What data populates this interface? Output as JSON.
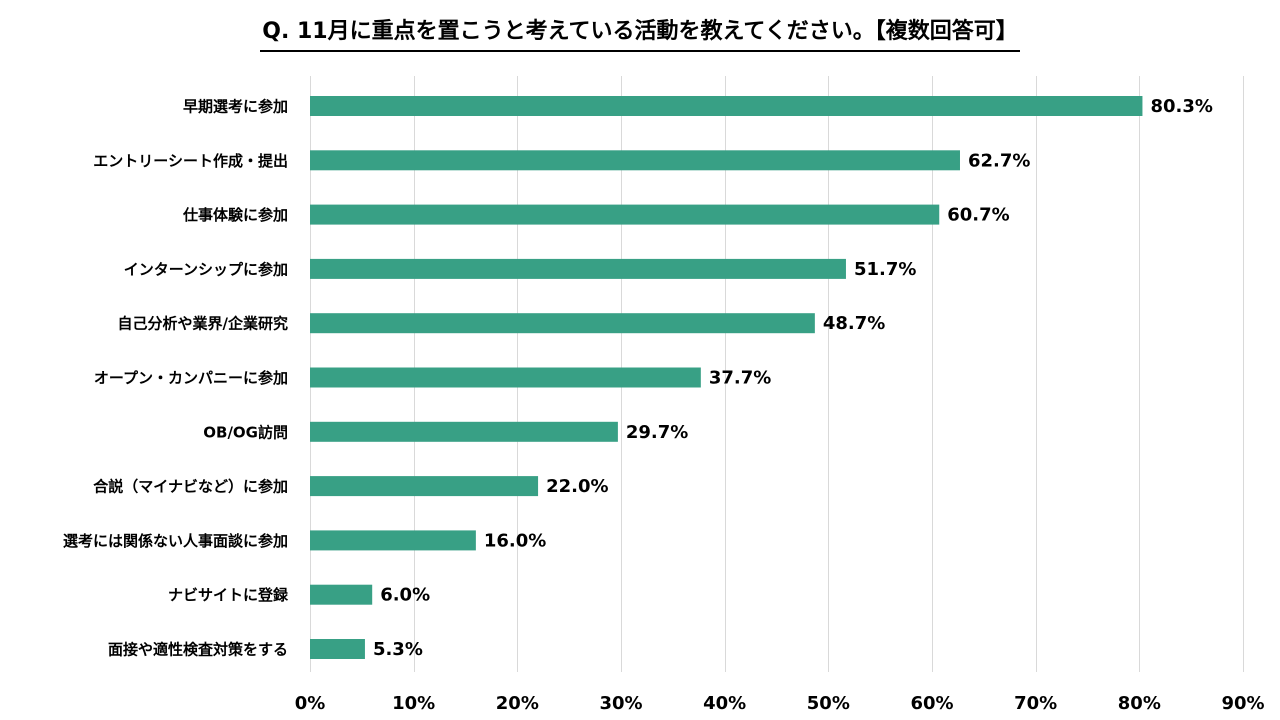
{
  "chart_data": {
    "type": "bar",
    "orientation": "horizontal",
    "title": "Q. 11月に重点を置こうと考えている活動を教えてください。【複数回答可】",
    "categories": [
      "早期選考に参加",
      "エントリーシート作成・提出",
      "仕事体験に参加",
      "インターンシップに参加",
      "自己分析や業界/企業研究",
      "オープン・カンパニーに参加",
      "OB/OG訪問",
      "合説（マイナビなど）に参加",
      "選考には関係ない人事面談に参加",
      "ナビサイトに登録",
      "面接や適性検査対策をする"
    ],
    "values": [
      80.3,
      62.7,
      60.7,
      51.7,
      48.7,
      37.7,
      29.7,
      22.0,
      16.0,
      6.0,
      5.3
    ],
    "value_labels": [
      "80.3%",
      "62.7%",
      "60.7%",
      "51.7%",
      "48.7%",
      "37.7%",
      "29.7%",
      "22.0%",
      "16.0%",
      "6.0%",
      "5.3%"
    ],
    "xlim": [
      0,
      90
    ],
    "xticks": [
      0,
      10,
      20,
      30,
      40,
      50,
      60,
      70,
      80,
      90
    ],
    "xtick_labels": [
      "0%",
      "10%",
      "20%",
      "30%",
      "40%",
      "50%",
      "60%",
      "70%",
      "80%",
      "90%"
    ],
    "xlabel": "",
    "ylabel": "",
    "grid": "vertical",
    "legend": "none",
    "bar_color": "#38a085",
    "grid_color": "#d9d9d9"
  }
}
